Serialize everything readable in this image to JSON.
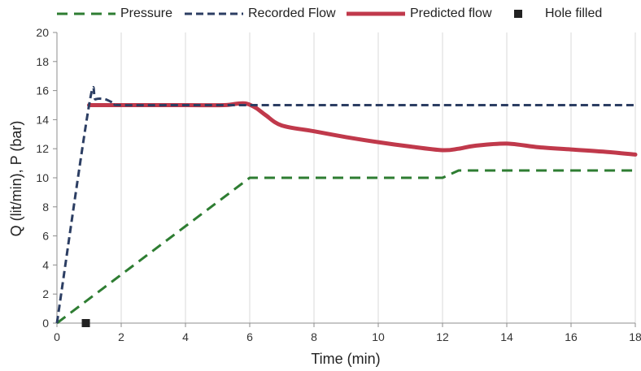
{
  "chart_data": {
    "type": "line",
    "title": "",
    "xlabel": "Time (min)",
    "ylabel": "Q (lit/min), P (bar)",
    "xlim": [
      0,
      18
    ],
    "ylim": [
      0,
      20
    ],
    "xticks": [
      "0",
      "2",
      "4",
      "6",
      "8",
      "10",
      "12",
      "14",
      "16",
      "18"
    ],
    "yticks": [
      "0",
      "2",
      "4",
      "6",
      "8",
      "10",
      "12",
      "14",
      "16",
      "18",
      "20"
    ],
    "grid": "vertical",
    "legend_position": "top",
    "series": [
      {
        "name": "Pressure",
        "style": "dashed",
        "color": "#2e7d32",
        "x": [
          0,
          6,
          12,
          12.5,
          18
        ],
        "y": [
          0,
          10,
          10,
          10.5,
          10.5
        ]
      },
      {
        "name": "Recorded Flow",
        "style": "dashed",
        "color": "#2c3e63",
        "x": [
          0,
          1,
          1.2,
          1.5,
          1.8,
          2,
          4,
          6,
          18
        ],
        "y": [
          0,
          15,
          15.4,
          15.4,
          15.1,
          15,
          15,
          15,
          15
        ]
      },
      {
        "name": "Predicted flow",
        "style": "solid",
        "color": "#c0394b",
        "x": [
          1,
          2,
          4,
          5.2,
          5.6,
          5.9,
          6.2,
          6.5,
          7,
          8,
          9,
          10,
          11,
          12,
          12.5,
          13,
          14,
          15,
          16,
          17,
          18
        ],
        "y": [
          15,
          15,
          15,
          15,
          15.1,
          15.1,
          14.8,
          14.3,
          13.6,
          13.2,
          12.8,
          12.45,
          12.15,
          11.9,
          12,
          12.2,
          12.35,
          12.1,
          11.95,
          11.8,
          11.6
        ]
      },
      {
        "name": "Hole filled",
        "style": "marker",
        "color": "#222222",
        "x": [
          0.9
        ],
        "y": [
          0
        ]
      }
    ]
  }
}
